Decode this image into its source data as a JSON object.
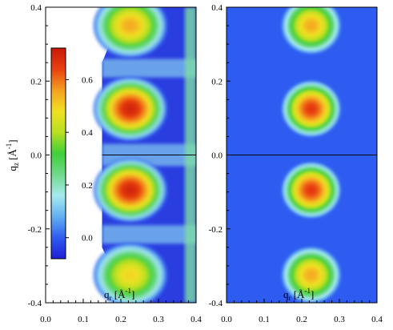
{
  "chart_data": [
    {
      "type": "heatmap",
      "panel": "left",
      "xlabel_main": "q",
      "xlabel_sub": "r",
      "xlabel_unit": "[Å",
      "xlabel_exp": "-1",
      "xlabel_close": "]",
      "ylabel_main": "q",
      "ylabel_sub": "z",
      "ylabel_unit": "[Å",
      "ylabel_exp": "-1",
      "ylabel_close": "]",
      "xlim": [
        0.0,
        0.4
      ],
      "ylim": [
        -0.4,
        0.4
      ],
      "x_ticks": [
        "0.0",
        "0.1",
        "0.2",
        "0.3",
        "0.4"
      ],
      "y_ticks": [
        "0.4",
        "0.2",
        "0.0",
        "-0.2",
        "-0.4"
      ],
      "horizontal_line_y": 0.0,
      "peaks": [
        {
          "qr": 0.225,
          "qz": 0.35,
          "intensity": 0.55
        },
        {
          "qr": 0.225,
          "qz": 0.125,
          "intensity": 0.7
        },
        {
          "qr": 0.225,
          "qz": -0.095,
          "intensity": 0.7
        },
        {
          "qr": 0.225,
          "qz": -0.325,
          "intensity": 0.5
        }
      ],
      "colorbar": {
        "range": [
          -0.08,
          0.72
        ],
        "ticks": [
          "0.6",
          "0.4",
          "0.2",
          "0.0"
        ],
        "tick_values": [
          0.6,
          0.4,
          0.2,
          0.0
        ],
        "colors": [
          "#1f1fd6",
          "#2f5cf0",
          "#62b0f0",
          "#a8eaf0",
          "#6fd98a",
          "#3fcf3a",
          "#b8e020",
          "#f0e020",
          "#f5a020",
          "#e84010",
          "#c81a08"
        ]
      }
    },
    {
      "type": "heatmap",
      "panel": "right",
      "xlabel_main": "q",
      "xlabel_sub": "r",
      "xlabel_unit": "[Å",
      "xlabel_exp": "-1",
      "xlabel_close": "]",
      "xlim": [
        0.0,
        0.4
      ],
      "ylim": [
        -0.4,
        0.4
      ],
      "x_ticks": [
        "0.0",
        "0.1",
        "0.2",
        "0.3",
        "0.4"
      ],
      "y_ticks": [
        "0.4",
        "0.2",
        "0.0",
        "-0.2",
        "-0.4"
      ],
      "horizontal_line_y": 0.0,
      "peaks": [
        {
          "qr": 0.225,
          "qz": 0.35,
          "intensity": 0.55
        },
        {
          "qr": 0.225,
          "qz": 0.125,
          "intensity": 0.66
        },
        {
          "qr": 0.225,
          "qz": -0.095,
          "intensity": 0.66
        },
        {
          "qr": 0.225,
          "qz": -0.325,
          "intensity": 0.55
        }
      ]
    }
  ]
}
